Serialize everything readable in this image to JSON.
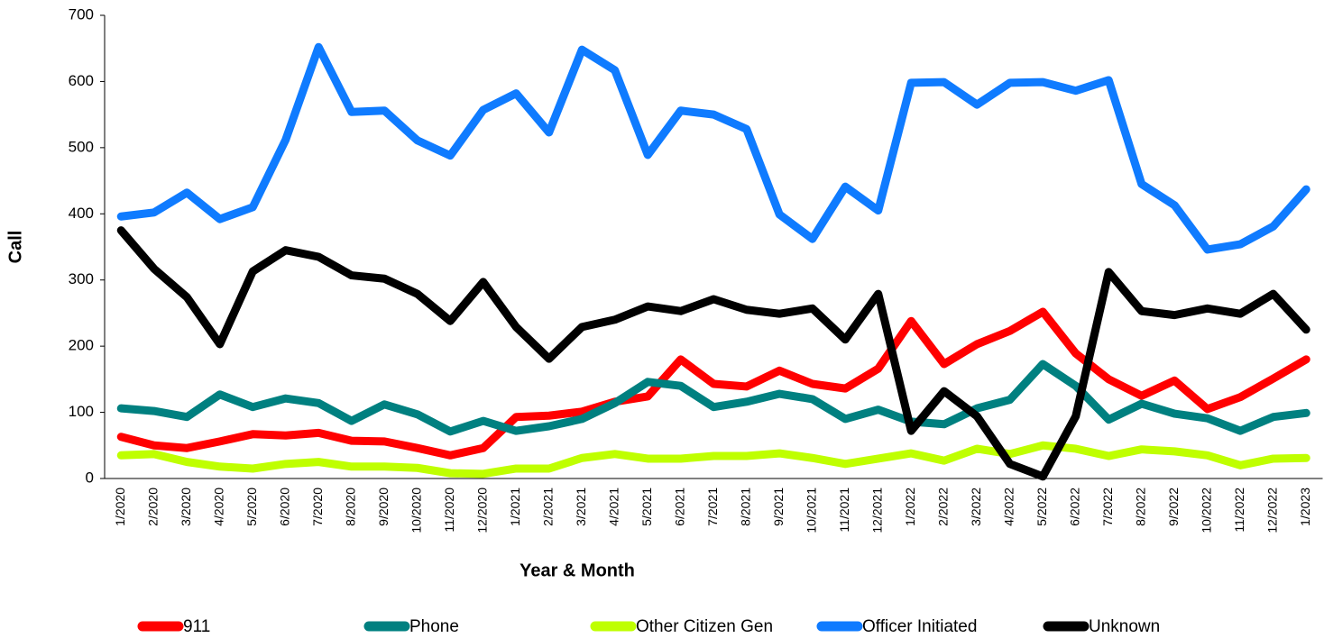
{
  "chart_data": {
    "type": "line",
    "x_label": "Year & Month",
    "y_label": "Call",
    "categories": [
      "1/2020",
      "2/2020",
      "3/2020",
      "4/2020",
      "5/2020",
      "6/2020",
      "7/2020",
      "8/2020",
      "9/2020",
      "10/2020",
      "11/2020",
      "12/2020",
      "1/2021",
      "2/2021",
      "3/2021",
      "4/2021",
      "5/2021",
      "6/2021",
      "7/2021",
      "8/2021",
      "9/2021",
      "10/2021",
      "11/2021",
      "12/2021",
      "1/2022",
      "2/2022",
      "3/2022",
      "4/2022",
      "5/2022",
      "6/2022",
      "7/2022",
      "8/2022",
      "9/2022",
      "10/2022",
      "11/2022",
      "12/2022",
      "1/2023"
    ],
    "series": [
      {
        "name": "911",
        "color": "#ff0000",
        "values": [
          63,
          50,
          46,
          56,
          67,
          65,
          69,
          57,
          56,
          46,
          35,
          46,
          93,
          95,
          101,
          116,
          124,
          180,
          143,
          139,
          163,
          143,
          136,
          166,
          238,
          173,
          203,
          223,
          252,
          189,
          150,
          125,
          148,
          105,
          123,
          151,
          180
        ]
      },
      {
        "name": "Phone",
        "color": "#008080",
        "values": [
          106,
          102,
          93,
          127,
          108,
          121,
          114,
          87,
          112,
          97,
          71,
          87,
          72,
          79,
          90,
          114,
          146,
          140,
          108,
          116,
          128,
          120,
          90,
          104,
          86,
          82,
          106,
          119,
          173,
          140,
          89,
          113,
          98,
          91,
          72,
          93,
          99
        ]
      },
      {
        "name": "Other Citizen Gen",
        "color": "#bfff00",
        "values": [
          35,
          37,
          25,
          18,
          15,
          22,
          25,
          18,
          18,
          16,
          8,
          7,
          15,
          15,
          31,
          37,
          30,
          30,
          34,
          34,
          38,
          31,
          22,
          30,
          38,
          27,
          45,
          37,
          50,
          45,
          34,
          44,
          41,
          35,
          20,
          30,
          31
        ]
      },
      {
        "name": "Officer Initiated",
        "color": "#0f7bff",
        "values": [
          396,
          402,
          432,
          392,
          410,
          512,
          652,
          554,
          556,
          511,
          488,
          557,
          582,
          523,
          648,
          617,
          489,
          556,
          550,
          528,
          399,
          362,
          441,
          405,
          598,
          599,
          565,
          598,
          599,
          586,
          602,
          445,
          413,
          346,
          354,
          381,
          437
        ]
      },
      {
        "name": "Unknown",
        "color": "#000000",
        "values": [
          375,
          317,
          274,
          203,
          313,
          345,
          335,
          307,
          302,
          279,
          238,
          297,
          229,
          181,
          229,
          240,
          260,
          253,
          271,
          255,
          249,
          257,
          210,
          279,
          72,
          132,
          94,
          22,
          3,
          94,
          312,
          253,
          247,
          257,
          249,
          279,
          225
        ]
      }
    ],
    "ylim": [
      0,
      700
    ],
    "yticks": [
      0,
      100,
      200,
      300,
      400,
      500,
      600,
      700
    ],
    "grid": false
  }
}
